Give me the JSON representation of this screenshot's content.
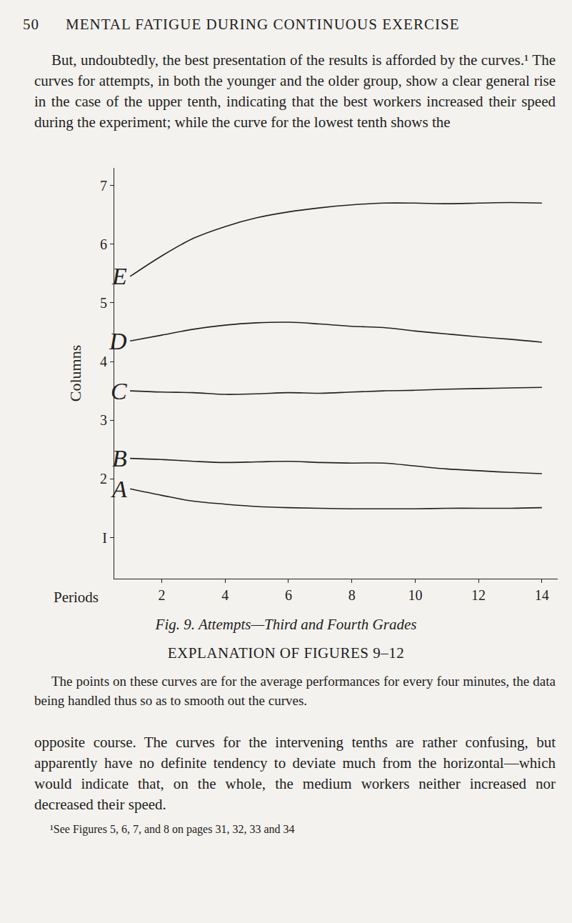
{
  "header": {
    "page_number": "50",
    "running_title": "MENTAL FATIGUE DURING CONTINUOUS EXERCISE"
  },
  "paragraph_1": "But, undoubtedly, the best presentation of the results is afforded by the curves.¹ The curves for attempts, in both the younger and the older group, show a clear general rise in the case of the upper tenth, indicating that the best workers increased their speed during the experiment; while the curve for the lowest tenth shows the",
  "chart_data": {
    "type": "line",
    "x_label": "Periods",
    "y_label": "Columns",
    "x": [
      1,
      2,
      3,
      4,
      5,
      6,
      7,
      8,
      9,
      10,
      11,
      12,
      13,
      14
    ],
    "series": [
      {
        "name": "E",
        "color": "#222222",
        "values": [
          5.45,
          5.8,
          6.1,
          6.3,
          6.45,
          6.55,
          6.62,
          6.67,
          6.7,
          6.7,
          6.69,
          6.7,
          6.71,
          6.7
        ]
      },
      {
        "name": "D",
        "color": "#222222",
        "values": [
          4.35,
          4.45,
          4.55,
          4.62,
          4.66,
          4.67,
          4.64,
          4.6,
          4.58,
          4.52,
          4.47,
          4.42,
          4.38,
          4.33
        ]
      },
      {
        "name": "C",
        "color": "#222222",
        "values": [
          3.5,
          3.48,
          3.47,
          3.44,
          3.45,
          3.47,
          3.46,
          3.48,
          3.5,
          3.51,
          3.53,
          3.54,
          3.55,
          3.56
        ]
      },
      {
        "name": "B",
        "color": "#222222",
        "values": [
          2.35,
          2.33,
          2.3,
          2.28,
          2.29,
          2.3,
          2.28,
          2.27,
          2.27,
          2.22,
          2.17,
          2.14,
          2.11,
          2.09
        ]
      },
      {
        "name": "A",
        "color": "#222222",
        "values": [
          1.83,
          1.72,
          1.62,
          1.57,
          1.53,
          1.51,
          1.5,
          1.49,
          1.49,
          1.49,
          1.5,
          1.5,
          1.5,
          1.51
        ]
      }
    ],
    "xlim": [
      0.5,
      14.5
    ],
    "xticks": [
      2,
      4,
      6,
      8,
      10,
      12,
      14
    ],
    "ylim": [
      0.3,
      7.3
    ],
    "yticks": [
      {
        "value": 1,
        "label": "I"
      },
      2,
      3,
      4,
      5,
      6,
      7
    ],
    "grid": false
  },
  "figure_caption": "Fig. 9. Attempts—Third and Fourth Grades",
  "explanation_heading": "EXPLANATION OF FIGURES 9–12",
  "explanation_text": "The points on these curves are for the average performances for every four minutes, the data being handled thus so as to smooth out the curves.",
  "paragraph_2": "opposite course. The curves for the intervening tenths are rather confusing, but apparently have no definite tendency to deviate much from the horizontal—which would indicate that, on the whole, the medium workers neither increased nor decreased their speed.",
  "footnote": "¹See Figures 5, 6, 7, and 8 on pages 31, 32, 33 and 34"
}
